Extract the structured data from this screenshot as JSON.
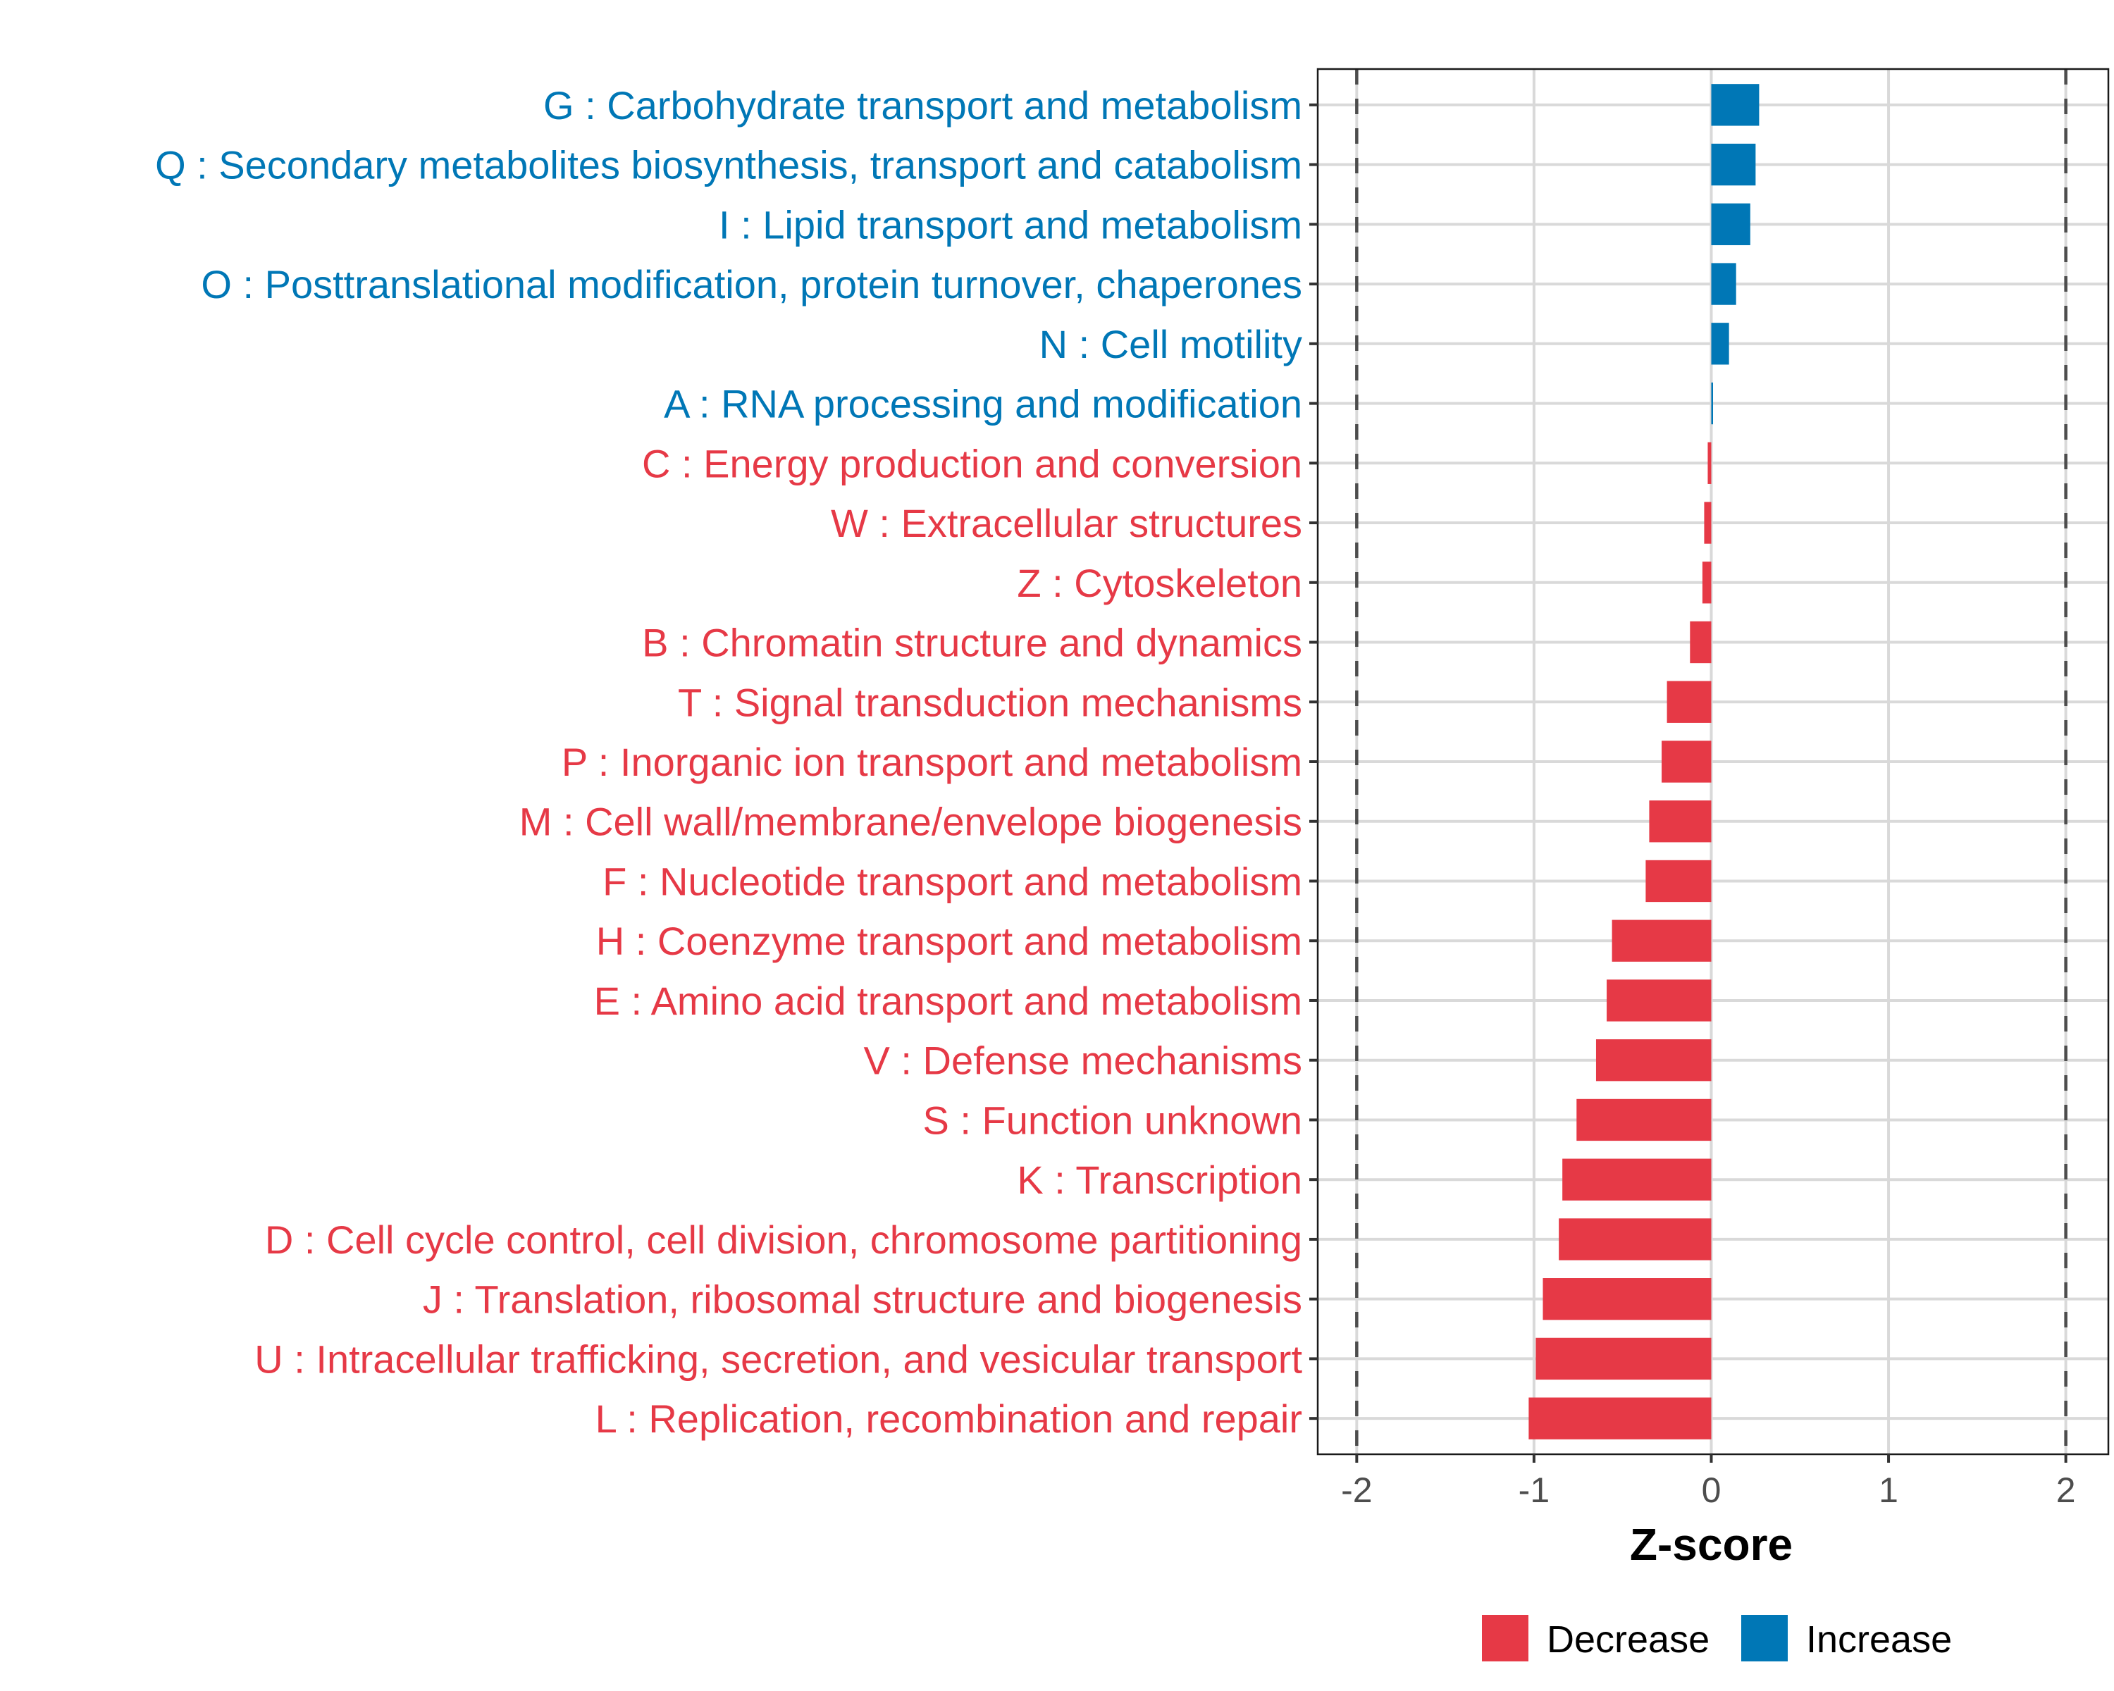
{
  "chart_data": {
    "type": "bar",
    "orientation": "horizontal",
    "title": "",
    "xlabel": "Z-score",
    "ylabel": "",
    "xlim": [
      -2.22,
      2.24
    ],
    "xticks": [
      -2,
      -1,
      0,
      1,
      2
    ],
    "xtick_labels": [
      "-2",
      "-1",
      "0",
      "1",
      "2"
    ],
    "reference_lines": [
      -2,
      2
    ],
    "grid": true,
    "legend": {
      "position": "bottom",
      "entries": [
        {
          "label": "Decrease",
          "color": "#E63946"
        },
        {
          "label": "Increase",
          "color": "#0077B6"
        }
      ]
    },
    "colors": {
      "Decrease": "#E63946",
      "Increase": "#0077B6"
    },
    "categories": [
      "G : Carbohydrate transport and metabolism",
      "Q : Secondary metabolites biosynthesis, transport and catabolism",
      "I : Lipid transport and metabolism",
      "O : Posttranslational modification, protein turnover, chaperones",
      "N : Cell motility",
      "A : RNA processing and modification",
      "C : Energy production and conversion",
      "W : Extracellular structures",
      "Z : Cytoskeleton",
      "B : Chromatin structure and dynamics",
      "T : Signal transduction mechanisms",
      "P : Inorganic ion transport and metabolism",
      "M : Cell wall/membrane/envelope biogenesis",
      "F : Nucleotide transport and metabolism",
      "H : Coenzyme transport and metabolism",
      "E : Amino acid transport and metabolism",
      "V : Defense mechanisms",
      "S : Function unknown",
      "K : Transcription",
      "D : Cell cycle control, cell division, chromosome partitioning",
      "J : Translation, ribosomal structure and biogenesis",
      "U : Intracellular trafficking, secretion, and vesicular transport",
      "L : Replication, recombination and repair"
    ],
    "values": [
      0.27,
      0.25,
      0.22,
      0.14,
      0.1,
      0.01,
      -0.02,
      -0.04,
      -0.05,
      -0.12,
      -0.25,
      -0.28,
      -0.35,
      -0.37,
      -0.56,
      -0.59,
      -0.65,
      -0.76,
      -0.84,
      -0.86,
      -0.95,
      -0.99,
      -1.03
    ],
    "groups": [
      "Increase",
      "Increase",
      "Increase",
      "Increase",
      "Increase",
      "Increase",
      "Decrease",
      "Decrease",
      "Decrease",
      "Decrease",
      "Decrease",
      "Decrease",
      "Decrease",
      "Decrease",
      "Decrease",
      "Decrease",
      "Decrease",
      "Decrease",
      "Decrease",
      "Decrease",
      "Decrease",
      "Decrease",
      "Decrease"
    ]
  }
}
